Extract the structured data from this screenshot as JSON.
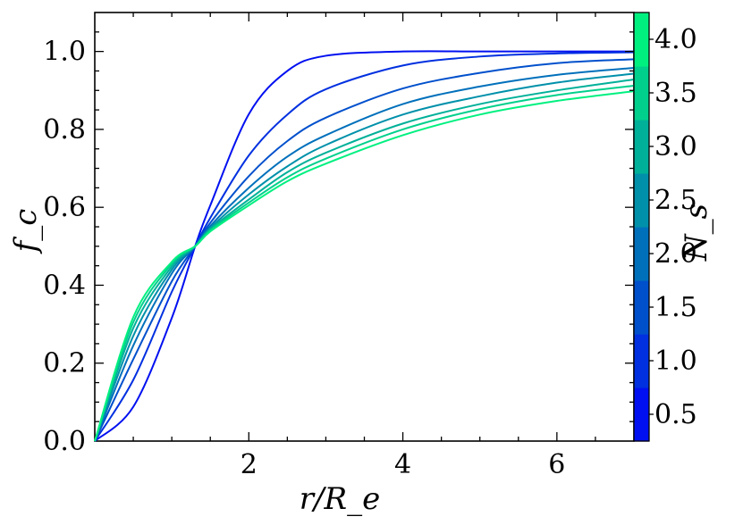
{
  "chart_data": {
    "type": "line",
    "title": "",
    "xlabel": "r/R_e",
    "ylabel": "f_c",
    "xlim": [
      0.0,
      7.0
    ],
    "ylim": [
      0.0,
      1.1
    ],
    "x_ticks": [
      2,
      4,
      6
    ],
    "x_tick_labels": [
      "2",
      "4",
      "6"
    ],
    "y_ticks": [
      0.0,
      0.2,
      0.4,
      0.6,
      0.8,
      1.0
    ],
    "y_tick_labels": [
      "0.0",
      "0.2",
      "0.4",
      "0.6",
      "0.8",
      "1.0"
    ],
    "grid": false,
    "legend": "none",
    "colorbar": {
      "label": "N_s",
      "range": [
        0.25,
        4.25
      ],
      "ticks": [
        0.5,
        1.0,
        1.5,
        2.0,
        2.5,
        3.0,
        3.5,
        4.0
      ],
      "tick_labels": [
        "0.5",
        "1.0",
        "1.5",
        "2.0",
        "2.5",
        "3.0",
        "3.5",
        "4.0"
      ],
      "color_min": "#0000ff",
      "color_max": "#00ff80"
    },
    "series": [
      {
        "Ns": 0.5,
        "color": "#0010f0",
        "x": [
          0.0,
          0.5,
          1.0,
          1.303,
          1.5,
          2.0,
          2.5,
          3.0,
          4.0,
          5.0,
          6.0,
          7.0
        ],
        "y": [
          0.0,
          0.088,
          0.316,
          0.5,
          0.605,
          0.839,
          0.95,
          0.989,
          1.0,
          1.0,
          1.0,
          1.0
        ]
      },
      {
        "Ns": 1.0,
        "color": "#0030e0",
        "x": [
          0.0,
          0.5,
          1.0,
          1.303,
          1.5,
          2.0,
          2.5,
          3.0,
          4.0,
          5.0,
          6.0,
          7.0
        ],
        "y": [
          0.0,
          0.157,
          0.383,
          0.5,
          0.573,
          0.733,
          0.838,
          0.903,
          0.964,
          0.987,
          0.995,
          0.998
        ]
      },
      {
        "Ns": 1.5,
        "color": "#0050cc",
        "x": [
          0.0,
          0.5,
          1.0,
          1.303,
          1.5,
          2.0,
          2.5,
          3.0,
          4.0,
          5.0,
          6.0,
          7.0
        ],
        "y": [
          0.0,
          0.21,
          0.41,
          0.5,
          0.56,
          0.68,
          0.77,
          0.83,
          0.905,
          0.945,
          0.97,
          0.98
        ]
      },
      {
        "Ns": 2.0,
        "color": "#0070bb",
        "x": [
          0.0,
          0.5,
          1.0,
          1.303,
          1.5,
          2.0,
          2.5,
          3.0,
          4.0,
          5.0,
          6.0,
          7.0
        ],
        "y": [
          0.0,
          0.245,
          0.43,
          0.5,
          0.552,
          0.65,
          0.73,
          0.785,
          0.865,
          0.91,
          0.94,
          0.958
        ]
      },
      {
        "Ns": 2.5,
        "color": "#0090aa",
        "x": [
          0.0,
          0.5,
          1.0,
          1.303,
          1.5,
          2.0,
          2.5,
          3.0,
          4.0,
          5.0,
          6.0,
          7.0
        ],
        "y": [
          0.0,
          0.27,
          0.44,
          0.5,
          0.547,
          0.633,
          0.705,
          0.76,
          0.838,
          0.885,
          0.92,
          0.943
        ]
      },
      {
        "Ns": 3.0,
        "color": "#00b099",
        "x": [
          0.0,
          0.5,
          1.0,
          1.303,
          1.5,
          2.0,
          2.5,
          3.0,
          4.0,
          5.0,
          6.0,
          7.0
        ],
        "y": [
          0.0,
          0.29,
          0.448,
          0.5,
          0.544,
          0.62,
          0.69,
          0.74,
          0.815,
          0.865,
          0.9,
          0.928
        ]
      },
      {
        "Ns": 3.5,
        "color": "#00d08c",
        "x": [
          0.0,
          0.5,
          1.0,
          1.303,
          1.5,
          2.0,
          2.5,
          3.0,
          4.0,
          5.0,
          6.0,
          7.0
        ],
        "y": [
          0.0,
          0.305,
          0.455,
          0.5,
          0.541,
          0.612,
          0.677,
          0.725,
          0.8,
          0.852,
          0.888,
          0.912
        ]
      },
      {
        "Ns": 4.0,
        "color": "#00f080",
        "x": [
          0.0,
          0.5,
          1.0,
          1.303,
          1.5,
          2.0,
          2.5,
          3.0,
          4.0,
          5.0,
          6.0,
          7.0
        ],
        "y": [
          0.0,
          0.318,
          0.46,
          0.5,
          0.538,
          0.605,
          0.667,
          0.712,
          0.785,
          0.838,
          0.873,
          0.898
        ]
      }
    ]
  }
}
